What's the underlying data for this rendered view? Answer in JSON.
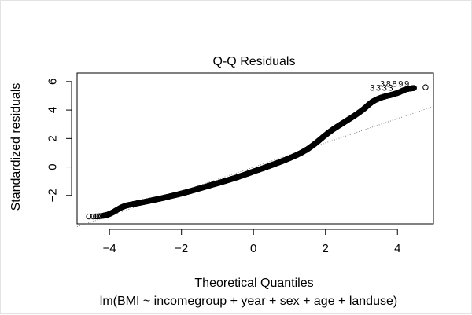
{
  "chart_data": {
    "type": "scatter",
    "title": "Q-Q Residuals",
    "xlabel": "Theoretical Quantiles",
    "ylabel": "Standardized residuals",
    "subtitle": "lm(BMI ~ incomegroup + year + sex + age + landuse)",
    "xlim": [
      -4.9,
      5.0
    ],
    "ylim": [
      -4.0,
      6.6
    ],
    "x_ticks": [
      -4,
      -2,
      0,
      2,
      4
    ],
    "y_ticks": [
      -2,
      0,
      2,
      4,
      6
    ],
    "grid": false,
    "series": [
      {
        "values_xy": [
          [
            -4.57,
            -3.48
          ],
          [
            -4.45,
            -3.48
          ],
          [
            -4.38,
            -3.47
          ],
          [
            -4.33,
            -3.47
          ],
          [
            -4.28,
            -3.46
          ],
          [
            -4.23,
            -3.45
          ],
          [
            -4.18,
            -3.43
          ],
          [
            -4.13,
            -3.4
          ],
          [
            -4.06,
            -3.36
          ],
          [
            -3.98,
            -3.28
          ],
          [
            -3.9,
            -3.18
          ],
          [
            -3.82,
            -3.06
          ],
          [
            -3.74,
            -2.94
          ],
          [
            -3.66,
            -2.83
          ],
          [
            -3.58,
            -2.75
          ],
          [
            -3.5,
            -2.69
          ],
          [
            -3.4,
            -2.64
          ],
          [
            -3.3,
            -2.59
          ],
          [
            -3.2,
            -2.54
          ],
          [
            -3.1,
            -2.49
          ],
          [
            -3.0,
            -2.44
          ],
          [
            -2.85,
            -2.36
          ],
          [
            -2.7,
            -2.28
          ],
          [
            -2.55,
            -2.2
          ],
          [
            -2.4,
            -2.11
          ],
          [
            -2.25,
            -2.02
          ],
          [
            -2.1,
            -1.93
          ],
          [
            -1.95,
            -1.83
          ],
          [
            -1.8,
            -1.73
          ],
          [
            -1.65,
            -1.62
          ],
          [
            -1.5,
            -1.51
          ],
          [
            -1.35,
            -1.4
          ],
          [
            -1.2,
            -1.29
          ],
          [
            -1.05,
            -1.18
          ],
          [
            -0.9,
            -1.07
          ],
          [
            -0.75,
            -0.96
          ],
          [
            -0.6,
            -0.84
          ],
          [
            -0.45,
            -0.72
          ],
          [
            -0.3,
            -0.59
          ],
          [
            -0.15,
            -0.46
          ],
          [
            0.0,
            -0.32
          ],
          [
            0.15,
            -0.19
          ],
          [
            0.3,
            -0.06
          ],
          [
            0.45,
            0.08
          ],
          [
            0.6,
            0.22
          ],
          [
            0.75,
            0.36
          ],
          [
            0.9,
            0.51
          ],
          [
            1.05,
            0.67
          ],
          [
            1.2,
            0.84
          ],
          [
            1.35,
            1.03
          ],
          [
            1.5,
            1.25
          ],
          [
            1.65,
            1.52
          ],
          [
            1.8,
            1.82
          ],
          [
            1.95,
            2.14
          ],
          [
            2.1,
            2.44
          ],
          [
            2.25,
            2.71
          ],
          [
            2.4,
            2.95
          ],
          [
            2.55,
            3.19
          ],
          [
            2.7,
            3.43
          ],
          [
            2.85,
            3.68
          ],
          [
            3.0,
            3.95
          ],
          [
            3.1,
            4.15
          ],
          [
            3.2,
            4.38
          ],
          [
            3.3,
            4.58
          ],
          [
            3.4,
            4.72
          ],
          [
            3.5,
            4.83
          ],
          [
            3.6,
            4.92
          ],
          [
            3.7,
            4.99
          ],
          [
            3.8,
            5.05
          ],
          [
            3.9,
            5.12
          ],
          [
            4.0,
            5.2
          ],
          [
            4.08,
            5.28
          ],
          [
            4.14,
            5.36
          ],
          [
            4.2,
            5.42
          ],
          [
            4.26,
            5.47
          ],
          [
            4.32,
            5.5
          ],
          [
            4.38,
            5.52
          ],
          [
            4.46,
            5.55
          ],
          [
            4.78,
            5.6
          ]
        ]
      }
    ],
    "reference_line": {
      "style": "dotted",
      "color": "#808080",
      "points": [
        [
          -4.9,
          -4.2
        ],
        [
          5.0,
          4.25
        ]
      ]
    },
    "point_labels": [
      {
        "text": "3",
        "x": 3.3,
        "y": 5.37
      },
      {
        "text": "3",
        "x": 3.47,
        "y": 5.37
      },
      {
        "text": "3",
        "x": 3.64,
        "y": 5.37
      },
      {
        "text": "3",
        "x": 3.81,
        "y": 5.37
      },
      {
        "text": "3",
        "x": 3.58,
        "y": 5.63
      },
      {
        "text": "8",
        "x": 3.75,
        "y": 5.63
      },
      {
        "text": "8",
        "x": 3.92,
        "y": 5.63
      },
      {
        "text": "9",
        "x": 4.09,
        "y": 5.63
      },
      {
        "text": "9",
        "x": 4.26,
        "y": 5.63
      }
    ]
  }
}
